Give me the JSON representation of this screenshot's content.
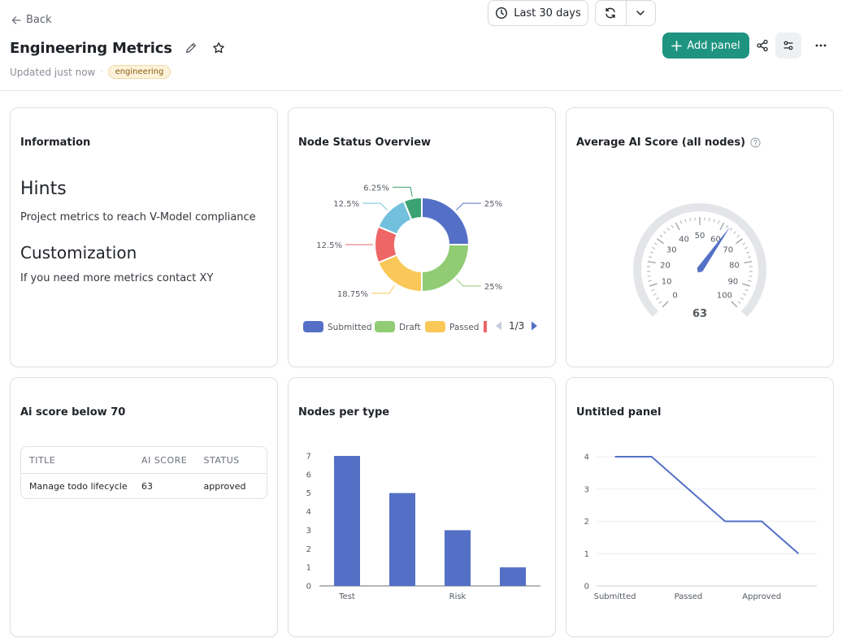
{
  "header": {
    "back_label": "Back",
    "title": "Engineering Metrics",
    "updated": "Updated just now",
    "separator": "·",
    "tag": "engineering"
  },
  "toolbar": {
    "time_range": "Last 30 days",
    "add_panel": "Add panel"
  },
  "panels": {
    "info": {
      "title": "Information",
      "hints_heading": "Hints",
      "hints_text": "Project metrics to reach V-Model compliance",
      "custom_heading": "Customization",
      "custom_text": "If you need more metrics contact XY"
    },
    "status": {
      "title": "Node Status Overview",
      "pager": "1/3"
    },
    "gauge": {
      "title": "Average AI Score (all nodes)"
    },
    "ai_table": {
      "title": "Ai score below 70",
      "columns": [
        "TITLE",
        "AI SCORE",
        "STATUS"
      ],
      "rows": [
        [
          "Manage todo lifecycle",
          "63",
          "approved"
        ]
      ]
    },
    "types": {
      "title": "Nodes per type"
    },
    "untitled": {
      "title": "Untitled panel"
    }
  },
  "colors": {
    "accent": "#1e9480",
    "series_blue": "#5470c6",
    "series_green": "#91cc75",
    "series_yellow": "#fac858",
    "series_red": "#ee6666",
    "series_cyan": "#73c0de",
    "series_teal": "#3ba272"
  },
  "chart_data": [
    {
      "type": "pie",
      "slices": [
        {
          "name": "Submitted",
          "value": 25,
          "label": "25%",
          "color": "#5470c6"
        },
        {
          "name": "Draft",
          "value": 25,
          "label": "25%",
          "color": "#91cc75"
        },
        {
          "name": "Passed",
          "value": 18.75,
          "label": "18.75%",
          "color": "#fac858"
        },
        {
          "name": "",
          "value": 12.5,
          "label": "12.5%",
          "color": "#ee6666"
        },
        {
          "name": "",
          "value": 12.5,
          "label": "12.5%",
          "color": "#73c0de"
        },
        {
          "name": "",
          "value": 6.25,
          "label": "6.25%",
          "color": "#3ba272"
        }
      ],
      "legend": [
        "Submitted",
        "Draft",
        "Passed"
      ],
      "legend_placement": "bottom"
    },
    {
      "type": "gauge",
      "value": 63,
      "min": 0,
      "max": 100,
      "ticks": [
        "0",
        "10",
        "20",
        "30",
        "40",
        "50",
        "60",
        "70",
        "80",
        "90",
        "100"
      ]
    },
    {
      "type": "bar",
      "categories": [
        "Test",
        "",
        "Risk",
        ""
      ],
      "values": [
        7,
        5,
        3,
        1
      ],
      "ylim": [
        0,
        7
      ],
      "yticks": [
        "0",
        "1",
        "2",
        "3",
        "4",
        "5",
        "6",
        "7"
      ],
      "grid": false
    },
    {
      "type": "line",
      "x": [
        "Submitted",
        "",
        "Passed",
        "",
        "Approved",
        ""
      ],
      "values": [
        4,
        4,
        3,
        2,
        2,
        1
      ],
      "ylim": [
        0,
        4
      ],
      "yticks": [
        "0",
        "1",
        "2",
        "3",
        "4"
      ],
      "grid": true
    }
  ]
}
